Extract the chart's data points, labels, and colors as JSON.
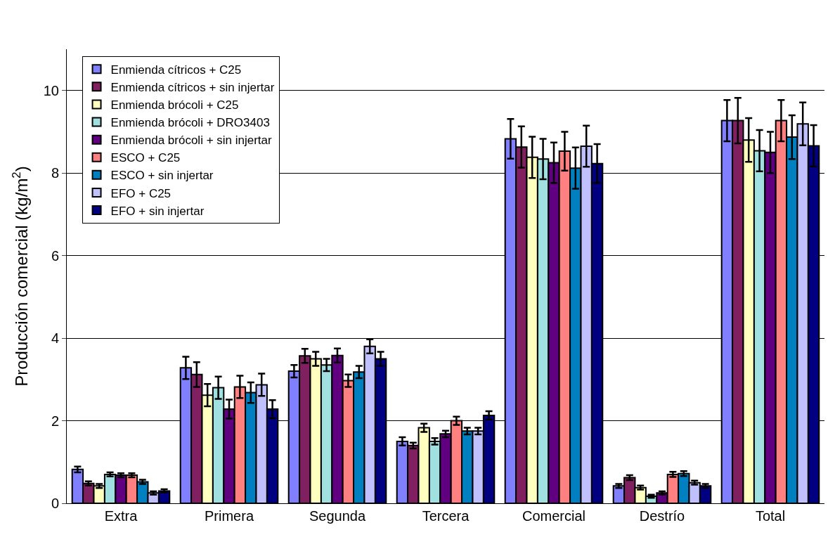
{
  "chart_data": {
    "type": "bar",
    "ylabel": "Producción comercial (kg/m$^{2}$)",
    "categories": [
      "Extra",
      "Primera",
      "Segunda",
      "Tercera",
      "Comercial",
      "Destrío",
      "Total"
    ],
    "ylim": [
      0,
      11
    ],
    "yticks": [
      0,
      2,
      4,
      6,
      8,
      10
    ],
    "grid": "y",
    "legend": "top left",
    "series": [
      {
        "name": "Enmienda cítricos + C25",
        "color": "#8080ff",
        "values": [
          0.82,
          3.28,
          3.2,
          1.5,
          8.83,
          0.42,
          9.27
        ],
        "errors": [
          0.07,
          0.27,
          0.15,
          0.1,
          0.48,
          0.05,
          0.5
        ]
      },
      {
        "name": "Enmienda cítricos + sin injertar",
        "color": "#802060",
        "values": [
          0.48,
          3.12,
          3.57,
          1.4,
          8.63,
          0.62,
          9.27
        ],
        "errors": [
          0.05,
          0.3,
          0.17,
          0.07,
          0.5,
          0.06,
          0.55
        ]
      },
      {
        "name": "Enmienda brócoli + C25",
        "color": "#ffffc0",
        "values": [
          0.42,
          2.62,
          3.5,
          1.83,
          8.38,
          0.38,
          8.8
        ],
        "errors": [
          0.05,
          0.27,
          0.17,
          0.1,
          0.5,
          0.05,
          0.53
        ]
      },
      {
        "name": "Enmienda brócoli + DRO3403",
        "color": "#a0e0e0",
        "values": [
          0.7,
          2.8,
          3.35,
          1.5,
          8.34,
          0.17,
          8.54
        ],
        "errors": [
          0.05,
          0.27,
          0.15,
          0.08,
          0.49,
          0.04,
          0.5
        ]
      },
      {
        "name": "Enmienda brócoli + sin injertar",
        "color": "#600080",
        "values": [
          0.68,
          2.28,
          3.58,
          1.68,
          8.25,
          0.25,
          8.5
        ],
        "errors": [
          0.05,
          0.23,
          0.17,
          0.08,
          0.49,
          0.04,
          0.5
        ]
      },
      {
        "name": "ESCO + C25",
        "color": "#ff8080",
        "values": [
          0.68,
          2.82,
          2.97,
          2.0,
          8.53,
          0.7,
          9.27
        ],
        "errors": [
          0.05,
          0.27,
          0.15,
          0.1,
          0.47,
          0.06,
          0.5
        ]
      },
      {
        "name": "ESCO + sin injertar",
        "color": "#0080c0",
        "values": [
          0.52,
          2.68,
          3.18,
          1.75,
          8.12,
          0.72,
          8.87
        ],
        "errors": [
          0.05,
          0.25,
          0.15,
          0.08,
          0.5,
          0.06,
          0.53
        ]
      },
      {
        "name": "EFO + C25",
        "color": "#c0c0ff",
        "values": [
          0.25,
          2.87,
          3.8,
          1.75,
          8.65,
          0.5,
          9.19
        ],
        "errors": [
          0.04,
          0.27,
          0.17,
          0.08,
          0.5,
          0.05,
          0.52
        ]
      },
      {
        "name": "EFO + sin injertar",
        "color": "#000080",
        "values": [
          0.3,
          2.28,
          3.5,
          2.13,
          8.23,
          0.42,
          8.66
        ],
        "errors": [
          0.04,
          0.22,
          0.17,
          0.1,
          0.47,
          0.05,
          0.5
        ]
      }
    ]
  }
}
